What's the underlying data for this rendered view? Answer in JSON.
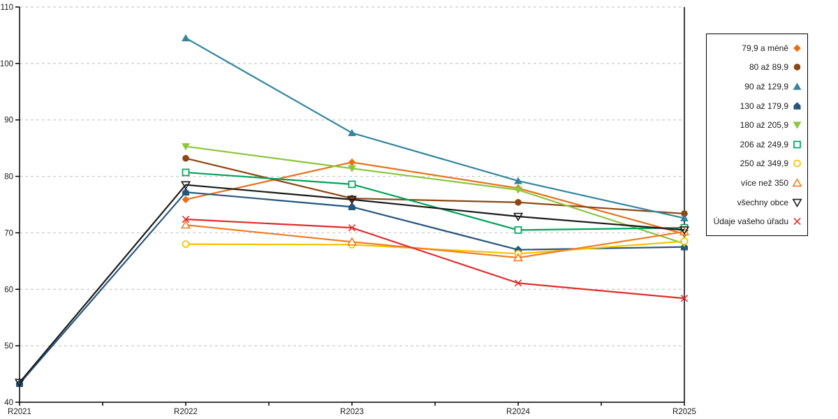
{
  "chart_data": {
    "type": "line",
    "title": "",
    "xlabel": "",
    "ylabel": "",
    "x_categories": [
      "R2021",
      "R2022",
      "R2023",
      "R2024",
      "R2025"
    ],
    "y_axis": {
      "min": 40,
      "max": 110,
      "tick_step": 10
    },
    "grid": "horizontal-dashed",
    "legend_position": "right",
    "colors": {
      "gridline": "#c9c9c9",
      "axis": "#000000",
      "background": "#ffffff"
    },
    "series": [
      {
        "name": "79,9 a méně",
        "color": "#e8701a",
        "marker": "diamond-filled",
        "values": [
          null,
          75.9,
          82.5,
          77.9,
          69.8
        ]
      },
      {
        "name": "80 až 89,9",
        "color": "#8c4613",
        "marker": "circle-filled",
        "values": [
          null,
          83.2,
          76.1,
          75.4,
          73.4
        ]
      },
      {
        "name": "90 až 129,9",
        "color": "#31859c",
        "marker": "triangle-up-filled",
        "values": [
          null,
          104.5,
          87.7,
          79.2,
          72.6
        ]
      },
      {
        "name": "130 až 179,9",
        "color": "#27567d",
        "marker": "pentagon-filled",
        "values": [
          43.3,
          77.2,
          74.6,
          67.0,
          67.5
        ]
      },
      {
        "name": "180 až 205,9",
        "color": "#8cc63e",
        "marker": "triangle-down-filled",
        "values": [
          null,
          85.3,
          81.4,
          77.6,
          68.1
        ]
      },
      {
        "name": "206 až 249,9",
        "color": "#00a35a",
        "marker": "square-open",
        "values": [
          null,
          80.7,
          78.6,
          70.5,
          70.9
        ]
      },
      {
        "name": "250 až 349,9",
        "color": "#f2c500",
        "marker": "circle-open",
        "values": [
          null,
          68.0,
          67.9,
          66.3,
          68.5
        ]
      },
      {
        "name": "více než 350",
        "color": "#f07d23",
        "marker": "triangle-up-open",
        "values": [
          null,
          71.4,
          68.4,
          65.6,
          70.2
        ]
      },
      {
        "name": "všechny obce",
        "color": "#1a1a1a",
        "marker": "triangle-down-open",
        "values": [
          43.5,
          78.5,
          75.9,
          72.9,
          70.5
        ]
      },
      {
        "name": "Údaje vašeho úřadu",
        "color": "#e32b2b",
        "marker": "x",
        "values": [
          null,
          72.4,
          70.9,
          61.1,
          58.4
        ]
      }
    ]
  }
}
